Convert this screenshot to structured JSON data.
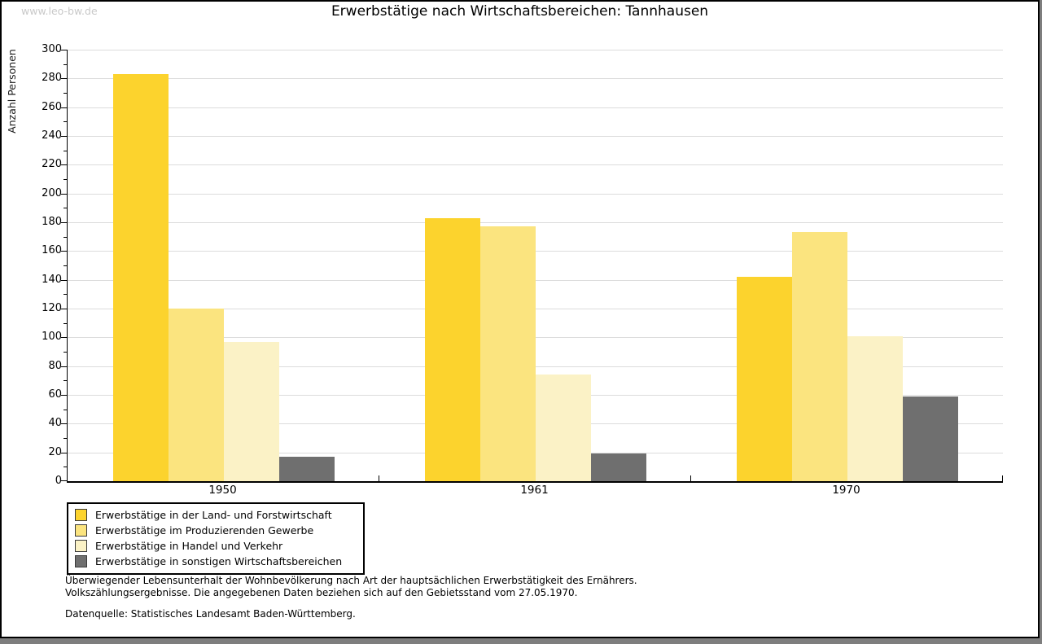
{
  "page": {
    "watermark": "www.leo-bw.de",
    "footer_line1": "Überwiegender Lebensunterhalt der Wohnbevölkerung nach Art der hauptsächlichen Erwerbstätigkeit des Ernährers.",
    "footer_line2": "Volkszählungsergebnisse. Die angegebenen Daten beziehen sich auf den Gebietsstand vom 27.05.1970.",
    "footer_line3": "Datenquelle: Statistisches Landesamt Baden-Württemberg."
  },
  "chart_data": {
    "type": "bar",
    "title": "Erwerbstätige nach Wirtschaftsbereichen: Tannhausen",
    "xlabel": "",
    "ylabel": "Anzahl Personen",
    "categories": [
      "1950",
      "1961",
      "1970"
    ],
    "series": [
      {
        "name": "Erwerbstätige in der Land- und Forstwirtschaft",
        "color": "#FCD32D",
        "values": [
          283,
          183,
          142
        ]
      },
      {
        "name": "Erwerbstätige im Produzierenden Gewerbe",
        "color": "#FBE47F",
        "values": [
          120,
          177,
          173
        ]
      },
      {
        "name": "Erwerbstätige in Handel und Verkehr",
        "color": "#FBF2C6",
        "values": [
          97,
          74,
          101
        ]
      },
      {
        "name": "Erwerbstätige in sonstigen Wirtschaftsbereichen",
        "color": "#6F6F6F",
        "values": [
          17,
          19,
          59
        ]
      }
    ],
    "ylim": [
      0,
      300
    ],
    "ytick_step": 20,
    "yminor_step": 10,
    "grid": "horizontal",
    "gridline_color": "#DCDCDC",
    "axis_color": "#000000",
    "legend_position": "bottom-left"
  }
}
